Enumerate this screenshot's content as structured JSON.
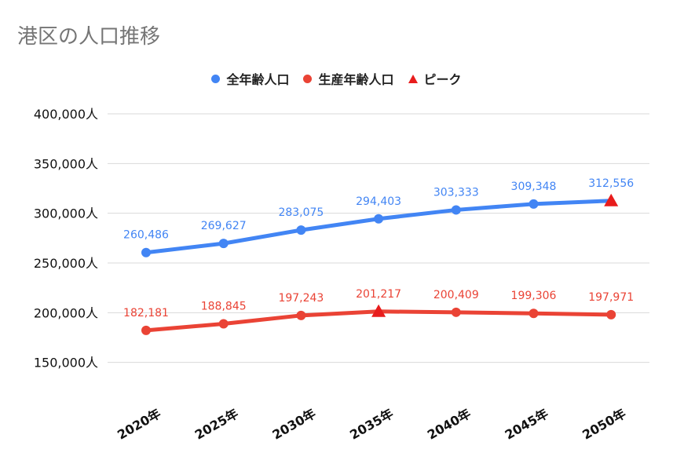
{
  "colors": {
    "total": "#4285f4",
    "working": "#ea4335",
    "peak": "#e81c1c",
    "grid": "#d9d9d9"
  },
  "chart_data": {
    "type": "line",
    "title": "港区の人口推移",
    "categories": [
      "2020年",
      "2025年",
      "2030年",
      "2035年",
      "2040年",
      "2045年",
      "2050年"
    ],
    "series": [
      {
        "name": "全年齢人口",
        "values": [
          260486,
          269627,
          283075,
          294403,
          303333,
          309348,
          312556
        ],
        "labels": [
          "260,486",
          "269,627",
          "283,075",
          "294,403",
          "303,333",
          "309,348",
          "312,556"
        ],
        "peak_index": 6
      },
      {
        "name": "生産年齢人口",
        "values": [
          182181,
          188845,
          197243,
          201217,
          200409,
          199306,
          197971
        ],
        "labels": [
          "182,181",
          "188,845",
          "197,243",
          "201,217",
          "200,409",
          "199,306",
          "197,971"
        ],
        "peak_index": 3
      }
    ],
    "peak_legend": "ピーク",
    "yticks": [
      150000,
      200000,
      250000,
      300000,
      350000,
      400000
    ],
    "ytick_labels": [
      "150,000人",
      "200,000人",
      "250,000人",
      "300,000人",
      "350,000人",
      "400,000人"
    ],
    "ylim": [
      100000,
      400000
    ],
    "legend_position": "top",
    "grid": true
  }
}
